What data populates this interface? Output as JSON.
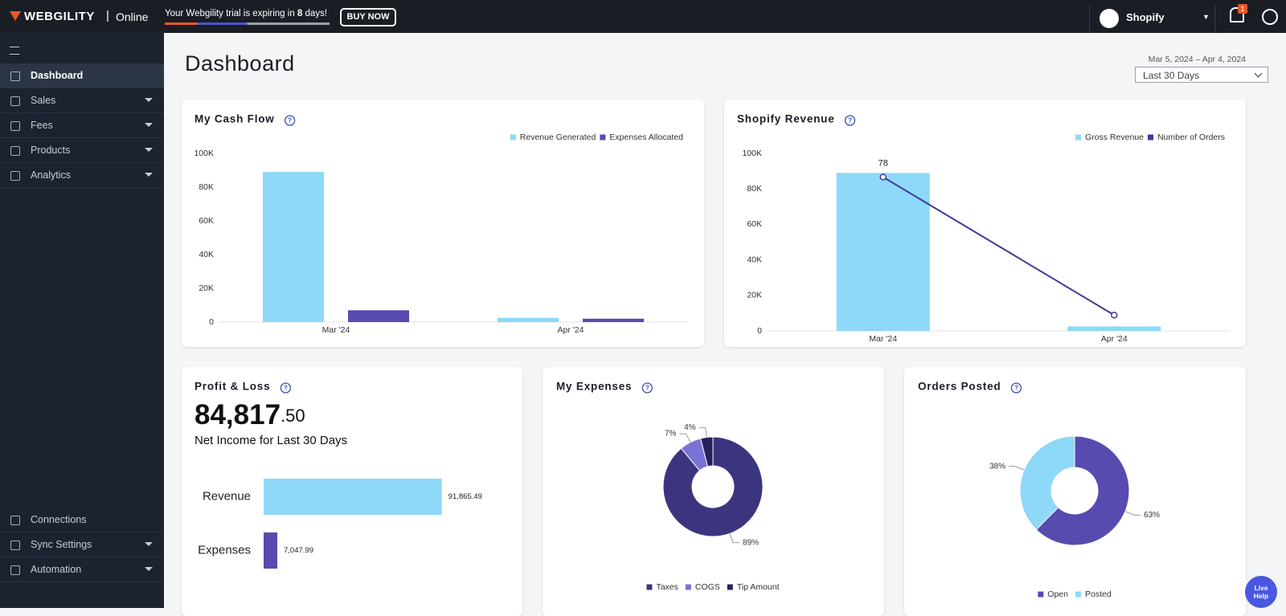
{
  "header": {
    "brand": "WEBGILITY",
    "edition": "Online",
    "trial_prefix": "Your Webgility trial is expiring in",
    "trial_days": "8",
    "trial_suffix": "days!",
    "buy_button": "BUY NOW",
    "store": "Shopify",
    "notifications": "1"
  },
  "sidebar": {
    "items": [
      "Dashboard",
      "Sales",
      "Fees",
      "Products",
      "Analytics"
    ],
    "bottom_items": [
      "Connections",
      "Sync Settings",
      "Automation"
    ]
  },
  "page": {
    "title": "Dashboard",
    "date_range": "Mar 5, 2024 – Apr 4, 2024",
    "period": "Last 30 Days"
  },
  "live_help": "Live Help",
  "chart_data": [
    {
      "type": "bar",
      "title": "My Cash Flow",
      "categories": [
        "Mar '24",
        "Apr '24"
      ],
      "series": [
        {
          "name": "Revenue Generated",
          "color": "#8ed8f8",
          "values": [
            89000,
            2500
          ]
        },
        {
          "name": "Expenses Allocated",
          "color": "#574bb0",
          "values": [
            7000,
            2000
          ]
        }
      ],
      "ylim": [
        0,
        100000
      ],
      "yticks": [
        0,
        {
          "value": 20000,
          "label": "20K"
        },
        {
          "value": 40000,
          "label": "40K"
        },
        {
          "value": 60000,
          "label": "60K"
        },
        {
          "value": 80000,
          "label": "80K"
        },
        {
          "value": 100000,
          "label": "100K"
        }
      ],
      "legend": "top-right"
    },
    {
      "type": "bar",
      "title": "Shopify Revenue",
      "categories": [
        "Mar '24",
        "Apr '24"
      ],
      "series": [
        {
          "name": "Gross Revenue",
          "color": "#8ed8f8",
          "values": [
            89000,
            2500
          ]
        },
        {
          "name": "Number of Orders",
          "color": "#3f3a9a",
          "type": "line",
          "axis": "y2",
          "values": [
            78,
            8
          ],
          "value_labels": [
            "78",
            null
          ]
        }
      ],
      "ylim": [
        0,
        100000
      ],
      "yticks": [
        0,
        {
          "value": 20000,
          "label": "20K"
        },
        {
          "value": 40000,
          "label": "40K"
        },
        {
          "value": 60000,
          "label": "60K"
        },
        {
          "value": 80000,
          "label": "80K"
        },
        {
          "value": 100000,
          "label": "100K"
        }
      ],
      "y2lim": [
        0,
        90
      ],
      "legend": "top-right"
    },
    {
      "type": "hbar",
      "title": "Profit & Loss",
      "amount": "84,817",
      "amount_cents": ".50",
      "subtitle": "Net Income for Last 30 Days",
      "categories": [
        "Revenue",
        "Expenses"
      ],
      "values": [
        91865.49,
        7047.99
      ],
      "value_labels": [
        "91,865.49",
        "7,047.99"
      ],
      "colors": [
        "#8ed8f8",
        "#574bb0"
      ],
      "xlim": [
        0,
        92000
      ]
    },
    {
      "type": "donut",
      "title": "My Expenses",
      "categories": [
        "Taxes",
        "COGS",
        "Tip Amount"
      ],
      "values": [
        89,
        7,
        4
      ],
      "value_labels": [
        "89%",
        "7%",
        "4%"
      ],
      "colors": [
        "#3b3580",
        "#7b72d6",
        "#27225e"
      ],
      "legend": "bottom"
    },
    {
      "type": "donut",
      "title": "Orders Posted",
      "categories": [
        "Open",
        "Posted"
      ],
      "values": [
        63,
        38
      ],
      "value_labels": [
        "63%",
        "38%"
      ],
      "colors": [
        "#574bb0",
        "#8ed8f8"
      ],
      "legend": "bottom"
    }
  ]
}
